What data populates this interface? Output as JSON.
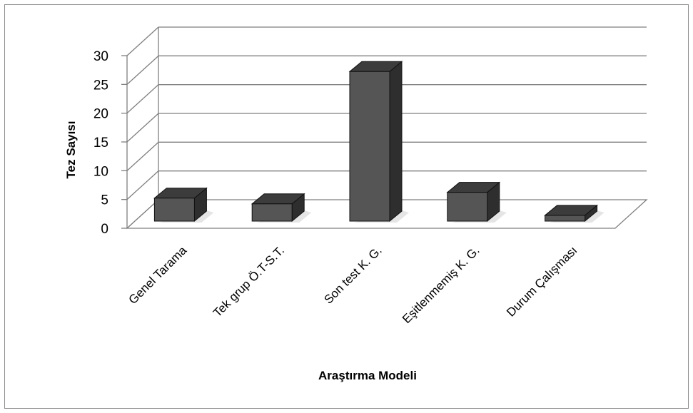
{
  "chart_data": {
    "type": "bar",
    "title": "",
    "xlabel": "Araştırma Modeli",
    "ylabel": "Tez Sayısı",
    "categories": [
      "Genel Tarama",
      "Tek grup Ö.T-S.T.",
      "Son test K. G.",
      "Eşitlenmemiş K. G.",
      "Durum Çalışması"
    ],
    "values": [
      4,
      3,
      26,
      5,
      1
    ],
    "ylim": [
      0,
      30
    ],
    "yticks": [
      0,
      5,
      10,
      15,
      20,
      25,
      30
    ],
    "grid": true,
    "legend": "none",
    "style": "3d-column",
    "colors": {
      "front": "#555555",
      "top": "#3c3c3c",
      "side": "#2e2e2e",
      "grid": "#7f7f7f"
    }
  }
}
